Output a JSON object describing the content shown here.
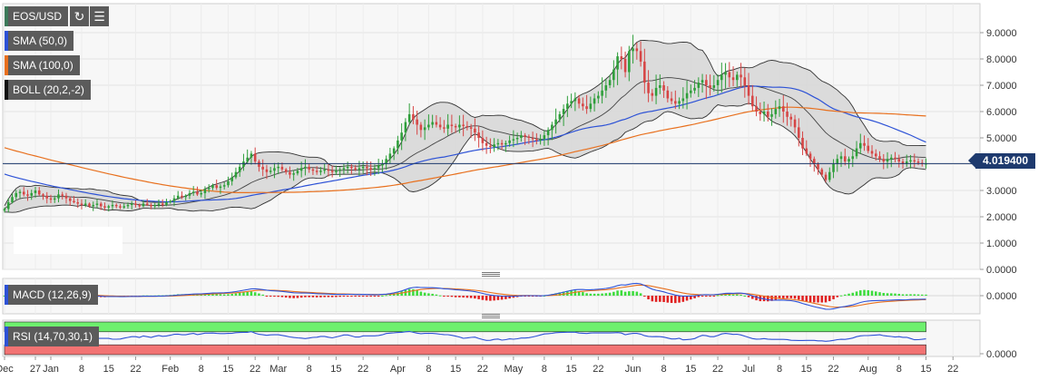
{
  "toolbar": {
    "symbol": "EOS/USD",
    "refresh_icon": "refresh-icon",
    "history_icon": "history-icon"
  },
  "indicators": {
    "sma50": {
      "label": "SMA (50,0)",
      "color": "#2d52d6"
    },
    "sma100": {
      "label": "SMA (100,0)",
      "color": "#e8701e"
    },
    "boll": {
      "label": "BOLL (20,2,-2)",
      "color": "#222222"
    },
    "macd": {
      "label": "MACD (12,26,9)",
      "color": "#2d52d6"
    },
    "rsi": {
      "label": "RSI (14,70,30,1)",
      "color": "#2d52d6"
    }
  },
  "colors": {
    "up_candle": "#2e9e3a",
    "down_candle": "#d64545",
    "band_fill": "#d6d6d6",
    "rsi_overbought": "#6ef06e",
    "rsi_oversold": "#f27373",
    "current_price_line": "#1e3a6e"
  },
  "current_price": "4.019400",
  "chart_data": [
    {
      "type": "candlestick",
      "title": "EOS/USD",
      "ylim": [
        0,
        10
      ],
      "y_ticks": [
        "9.0000",
        "8.0000",
        "7.0000",
        "6.0000",
        "5.0000",
        "4.0000",
        "3.0000",
        "2.0000",
        "1.0000",
        "0.0000"
      ],
      "x_ticks": [
        "Dec",
        "27",
        "Jan",
        "8",
        "15",
        "22",
        "Feb",
        "8",
        "15",
        "22",
        "Mar",
        "8",
        "15",
        "22",
        "Apr",
        "8",
        "15",
        "22",
        "May",
        "8",
        "15",
        "22",
        "Jun",
        "8",
        "15",
        "22",
        "Jul",
        "8",
        "15",
        "22",
        "Aug",
        "8",
        "15",
        "22"
      ],
      "x_tick_days": [
        0,
        8,
        12,
        20,
        27,
        34,
        43,
        51,
        58,
        65,
        71,
        79,
        86,
        93,
        102,
        110,
        117,
        124,
        132,
        140,
        147,
        154,
        163,
        171,
        178,
        185,
        193,
        201,
        208,
        215,
        224,
        232,
        239,
        246
      ],
      "current_price": 4.0194,
      "close": [
        2.3,
        2.55,
        2.75,
        2.9,
        2.95,
        2.85,
        2.8,
        2.9,
        3.0,
        2.85,
        2.8,
        2.7,
        2.65,
        2.7,
        2.85,
        2.8,
        2.7,
        2.6,
        2.55,
        2.5,
        2.45,
        2.5,
        2.4,
        2.45,
        2.5,
        2.4,
        2.35,
        2.4,
        2.45,
        2.4,
        2.35,
        2.4,
        2.45,
        2.5,
        2.45,
        2.4,
        2.5,
        2.45,
        2.4,
        2.45,
        2.5,
        2.45,
        2.55,
        2.6,
        2.7,
        2.8,
        2.75,
        2.8,
        2.9,
        2.95,
        2.85,
        2.9,
        3.05,
        3.1,
        3.2,
        3.1,
        3.15,
        3.2,
        3.35,
        3.5,
        3.7,
        3.9,
        4.1,
        4.25,
        4.4,
        4.1,
        3.9,
        3.8,
        3.7,
        3.75,
        3.85,
        3.9,
        3.8,
        3.7,
        3.6,
        3.65,
        3.75,
        3.85,
        3.9,
        3.8,
        3.75,
        3.7,
        3.75,
        3.8,
        3.75,
        3.7,
        3.75,
        3.8,
        3.85,
        3.9,
        3.85,
        3.8,
        3.85,
        3.9,
        3.85,
        3.8,
        3.85,
        3.95,
        4.0,
        4.2,
        4.4,
        4.6,
        4.9,
        5.2,
        5.6,
        5.9,
        5.7,
        5.5,
        5.3,
        5.4,
        5.5,
        5.6,
        5.5,
        5.4,
        5.35,
        5.5,
        5.45,
        5.4,
        5.5,
        5.45,
        5.4,
        5.35,
        5.2,
        5.0,
        4.8,
        4.7,
        4.65,
        4.75,
        4.8,
        4.75,
        4.8,
        4.9,
        4.95,
        5.0,
        5.1,
        5.05,
        5.0,
        4.95,
        4.9,
        4.95,
        5.1,
        5.3,
        5.5,
        5.7,
        5.9,
        6.1,
        6.3,
        6.4,
        6.5,
        6.3,
        6.2,
        6.1,
        6.3,
        6.5,
        6.6,
        6.8,
        7.0,
        7.2,
        7.6,
        8.1,
        8.0,
        7.5,
        8.3,
        8.4,
        8.3,
        7.9,
        7.1,
        6.7,
        6.6,
        6.9,
        7.0,
        6.8,
        6.5,
        6.4,
        6.3,
        6.4,
        6.5,
        6.7,
        6.8,
        6.9,
        7.1,
        7.2,
        7.0,
        6.9,
        7.0,
        7.2,
        7.4,
        7.5,
        7.3,
        7.2,
        7.4,
        7.3,
        7.0,
        6.6,
        6.2,
        6.0,
        5.9,
        6.0,
        5.8,
        5.9,
        6.1,
        6.2,
        6.0,
        5.8,
        5.7,
        5.4,
        5.0,
        4.6,
        4.4,
        4.2,
        4.0,
        3.8,
        3.6,
        3.4,
        3.7,
        4.0,
        4.2,
        4.3,
        4.1,
        4.2,
        4.3,
        4.6,
        4.8,
        4.7,
        4.5,
        4.4,
        4.3,
        4.2,
        4.1,
        4.2,
        4.25,
        4.2,
        4.1,
        4.0,
        4.1,
        4.15,
        4.1,
        4.05,
        4.0,
        4.0194
      ],
      "overlays": [
        {
          "name": "SMA (50,0)",
          "color": "#2d52d6"
        },
        {
          "name": "SMA (100,0)",
          "color": "#e8701e"
        },
        {
          "name": "BOLL (20,2,-2)",
          "color": "#222222"
        }
      ]
    },
    {
      "type": "line",
      "title": "MACD (12,26,9)",
      "y_ticks": [
        "0.0000"
      ]
    },
    {
      "type": "line",
      "title": "RSI (14,70,30,1)",
      "y_ticks": [
        "0.0000"
      ]
    }
  ]
}
